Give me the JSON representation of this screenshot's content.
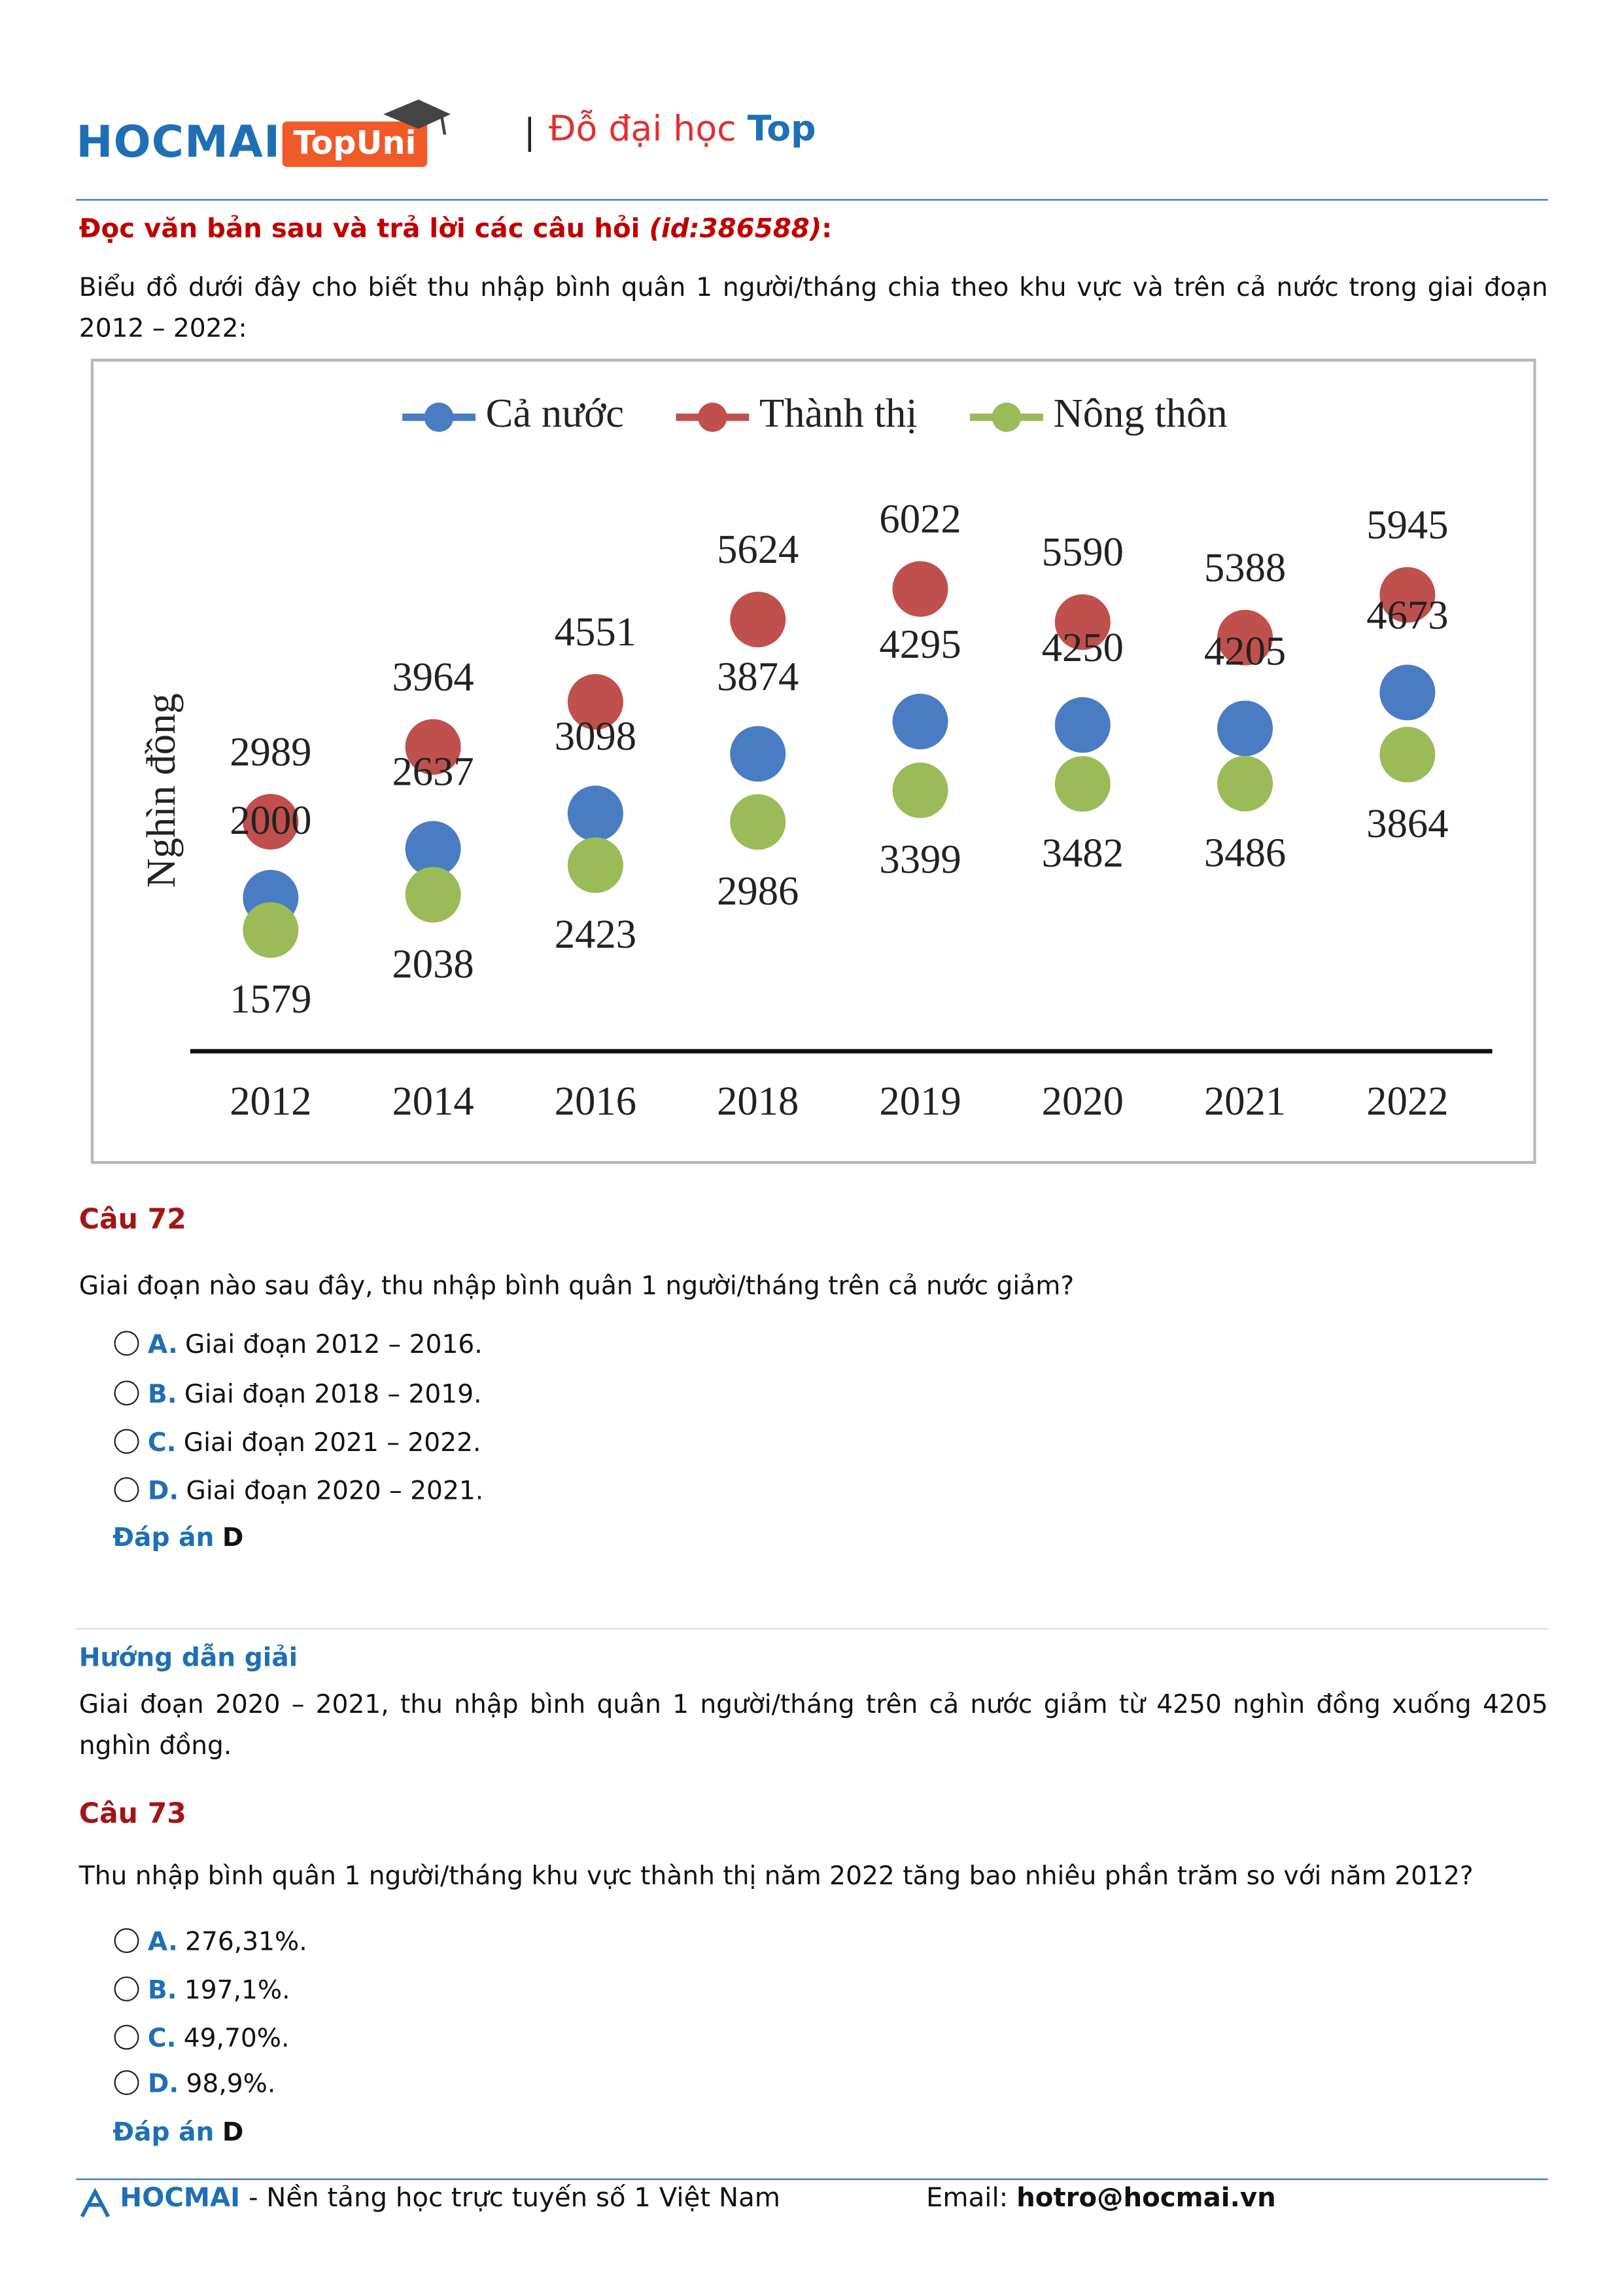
{
  "header": {
    "brand": "HOCMAI",
    "badge": "TopUni",
    "separator": "|",
    "slogan": "Đỗ đại học",
    "slogan_highlight": "Top"
  },
  "instruction": {
    "text": "Đọc văn bản sau và trả lời các câu hỏi",
    "id": "(id:386588)",
    "colon": ":"
  },
  "intro": "Biểu đồ dưới đây cho biết thu nhập bình quân 1 người/tháng chia theo khu vực và trên cả nước trong giai đoạn 2012 – 2022:",
  "chart_data": {
    "type": "line",
    "y_label": "Nghìn đồng",
    "categories": [
      "2012",
      "2014",
      "2016",
      "2018",
      "2019",
      "2020",
      "2021",
      "2022"
    ],
    "series": [
      {
        "name": "Cả nước",
        "color": "#4a7cc4",
        "values": [
          2000,
          2637,
          3098,
          3874,
          4295,
          4250,
          4205,
          4673
        ]
      },
      {
        "name": "Thành thị",
        "color": "#c0504d",
        "values": [
          2989,
          3964,
          4551,
          5624,
          6022,
          5590,
          5388,
          5945
        ]
      },
      {
        "name": "Nông thôn",
        "color": "#9bbb59",
        "values": [
          1579,
          2038,
          2423,
          2986,
          3399,
          3482,
          3486,
          3864
        ]
      }
    ],
    "ylim": [
      0,
      7000
    ],
    "legend": "top",
    "grid": false
  },
  "questions": [
    {
      "title": "Câu 72",
      "text": "Giai đoạn nào sau đây, thu nhập bình quân 1 người/tháng trên cả nước giảm?",
      "options": [
        {
          "letter": "A.",
          "text": "Giai đoạn 2012 – 2016."
        },
        {
          "letter": "B.",
          "text": "Giai đoạn 2018 – 2019."
        },
        {
          "letter": "C.",
          "text": "Giai đoạn 2021 – 2022."
        },
        {
          "letter": "D.",
          "text": "Giai đoạn 2020 – 2021."
        }
      ],
      "answer_label": "Đáp án",
      "answer": "D",
      "solution": {
        "heading": "Hướng dẫn giải",
        "text": "Giai đoạn 2020 – 2021, thu nhập bình quân 1 người/tháng trên cả nước giảm từ 4250 nghìn đồng xuống 4205 nghìn đồng."
      }
    },
    {
      "title": "Câu 73",
      "text": "Thu nhập bình quân 1 người/tháng khu vực thành thị năm 2022 tăng bao nhiêu phần trăm so với năm 2012?",
      "options": [
        {
          "letter": "A.",
          "text": "276,31%."
        },
        {
          "letter": "B.",
          "text": "197,1%."
        },
        {
          "letter": "C.",
          "text": "49,70%."
        },
        {
          "letter": "D.",
          "text": "98,9%."
        }
      ],
      "answer_label": "Đáp án",
      "answer": "D"
    }
  ],
  "footer": {
    "brand": "HOCMAI",
    "tagline": "- Nền tảng học trực tuyến số 1 Việt Nam",
    "email_label": "Email:",
    "email": "hotro@hocmai.vn"
  }
}
